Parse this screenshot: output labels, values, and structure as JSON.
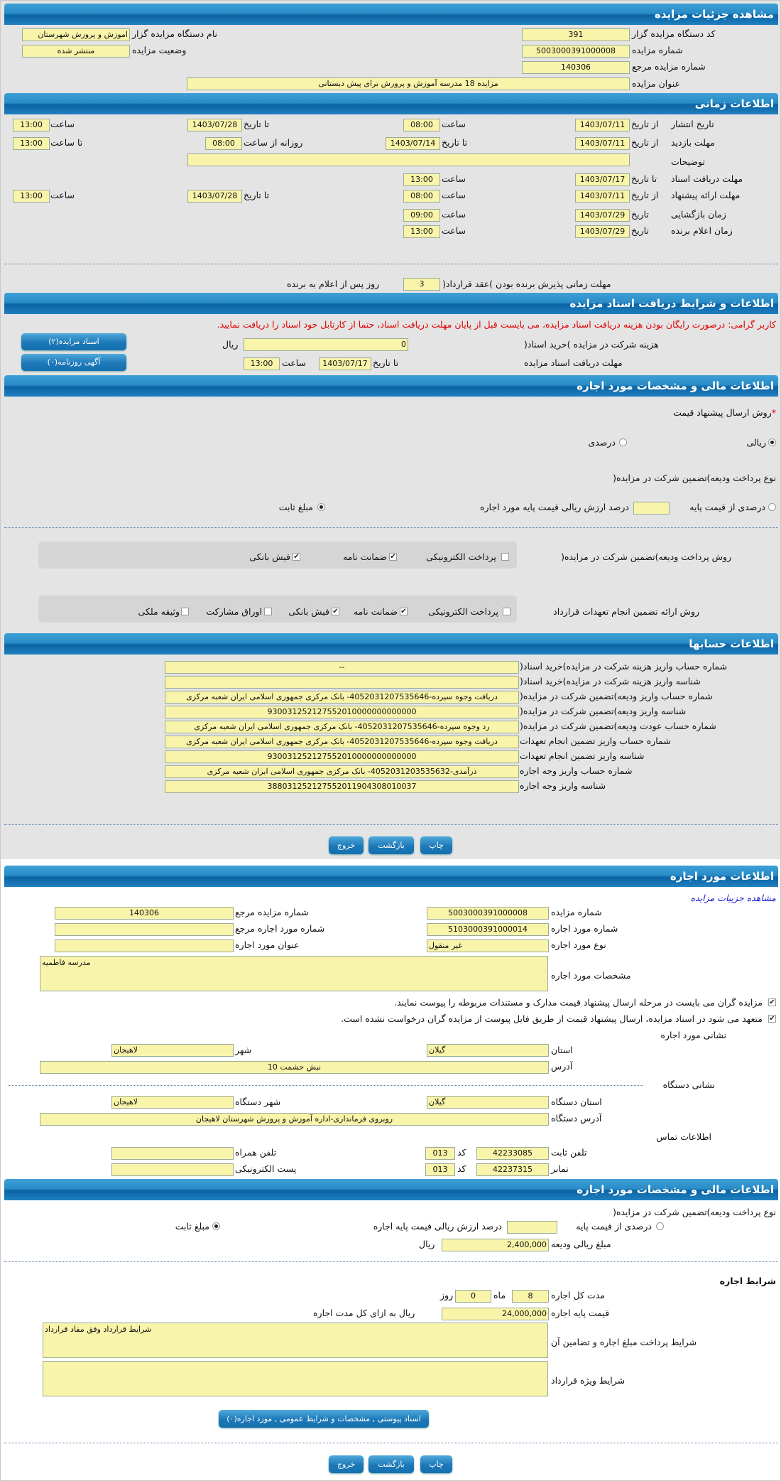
{
  "auction": {
    "header": "مشاهده جزئیات مزایده",
    "org_code_label": "کد دستگاه مزایده گزار",
    "org_code": "391",
    "auction_no_label": "شماره مزایده",
    "auction_no": "5003000391000008",
    "ref_no_label": "شماره مزایده مرجع",
    "ref_no": "140306",
    "title_label": "عنوان مزایده",
    "title": "مزایده 18 مدرسه آموزش و پرورش برای پیش دبستانی",
    "org_name_label": "نام دستگاه مزایده گزار",
    "org_name": "اموزش و پرورش شهرستان",
    "status_label": "وضعیت مزایده",
    "status": "منتشر شده"
  },
  "timing": {
    "header": "اطلاعات زمانی",
    "from_date": "از تاریخ",
    "to_date": "تا تاریخ",
    "hour": "ساعت",
    "to_hour": "تا ساعت",
    "date": "تاریخ",
    "daily_from_hour": "روزانه از ساعت",
    "publish": {
      "label": "تاریخ انتشار",
      "from": "1403/07/11",
      "from_time": "08:00",
      "to": "1403/07/28",
      "to_time": "13:00"
    },
    "visit": {
      "label": "مهلت بازدید",
      "from": "1403/07/11",
      "to": "1403/07/14",
      "daily_from": "08:00",
      "daily_to": "13:00"
    },
    "description_label": "توضیحات",
    "description": "",
    "doc_receive": {
      "label": "مهلت دریافت اسناد",
      "to": "1403/07/17",
      "time": "13:00"
    },
    "offer": {
      "label": "مهلت ارائه پیشنهاد",
      "from": "1403/07/11",
      "from_time": "08:00",
      "to": "1403/07/28",
      "to_time": "13:00"
    },
    "opening": {
      "label": "زمان بازگشایی",
      "date": "1403/07/29",
      "time": "09:00"
    },
    "winner": {
      "label": "زمان اعلام برنده",
      "date": "1403/07/29",
      "time": "13:00"
    },
    "acceptance_label": "مهلت زمانی پذیرش برنده بودن )عقد قرارداد(",
    "acceptance_days": "3",
    "acceptance_suffix": "روز پس از اعلام به برنده"
  },
  "documents": {
    "header": "اطلاعات و شرایط دریافت اسناد مزایده",
    "notice": "کاربر گرامی: درصورت رایگان بودن هزینه دریافت اسناد مزایده، می بایست قبل از پایان مهلت دریافت اسناد، حتما از کارتابل خود اسناد را دریافت نمایید.",
    "fee_label": "هزینه شرکت در مزایده )خرید اسناد(",
    "fee": "0",
    "currency": "ریال",
    "deadline_label": "مهلت دریافت اسناد مزایده",
    "to_date_label": "تا تاریخ",
    "deadline_date": "1403/07/17",
    "hour_label": "ساعت",
    "deadline_time": "13:00",
    "docs_button": "اسناد مزایده(۲)",
    "ads_button": "آگهی روزنامه(۰)"
  },
  "financial": {
    "header": "اطلاعات مالی و مشخصات مورد اجاره",
    "price_method_label": "روش ارسال پیشنهاد قیمت",
    "required_mark": "*",
    "price_methods": [
      {
        "label": "ریالی",
        "selected": true
      },
      {
        "label": "درصدی",
        "selected": false
      }
    ],
    "deposit_type_label": "نوع پرداخت ودیعه)تضمین شرکت در مزایده(",
    "deposit_percent_label": "درصدی از قیمت پایه",
    "deposit_percent": "",
    "deposit_percent_suffix": "درصد ارزش ریالی قیمت پایه مورد اجاره",
    "deposit_fixed_label": "مبلغ ثابت",
    "deposit_mode": "fixed",
    "deposit_payment_label": "روش پرداخت ودیعه)تضمین شرکت در مزایده(",
    "deposit_payment_options": [
      {
        "label": "پرداخت الکترونیکی",
        "checked": false
      },
      {
        "label": "ضمانت نامه",
        "checked": true
      },
      {
        "label": "فیش بانکی",
        "checked": true
      }
    ],
    "commitment_label": "روش ارائه تضمین انجام تعهدات قرارداد",
    "commitment_options": [
      {
        "label": "پرداخت الکترونیکی",
        "checked": false
      },
      {
        "label": "ضمانت نامه",
        "checked": true
      },
      {
        "label": "فیش بانکی",
        "checked": true
      },
      {
        "label": "اوراق مشارکت",
        "checked": false
      },
      {
        "label": "وثیقه ملکی",
        "checked": false
      }
    ]
  },
  "accounts": {
    "header": "اطلاعات حسابها",
    "rows": [
      {
        "label": "شماره حساب واریز هزینه شرکت در مزایده)خرید اسناد(",
        "value": "--"
      },
      {
        "label": "شناسه واریز هزینه شرکت در مزایده)خرید اسناد(",
        "value": ""
      },
      {
        "label": "شماره حساب واریز ودیعه)تضمین شرکت در مزایده(",
        "value": "دریافت وجوه سپرده-4052031207535646- بانک مرکزی جمهوری اسلامی ایران شعبه مرکزی"
      },
      {
        "label": "شناسه واریز ودیعه)تضمین شرکت در مزایده(",
        "value": "930031252127552010000000000000"
      },
      {
        "label": "شماره حساب عودت ودیعه)تضمین شرکت در مزایده(",
        "value": "رد وجوه سپرده-4052031207535646- بانک مرکزی جمهوری اسلامی ایران شعبه مرکزی"
      },
      {
        "label": "شماره حساب واریز تضمین انجام تعهدات",
        "value": "دریافت وجوه سپرده-4052031207535646- بانک مرکزی جمهوری اسلامی ایران شعبه مرکزی"
      },
      {
        "label": "شناسه واریز تضمین انجام تعهدات",
        "value": "930031252127552010000000000000"
      },
      {
        "label": "شماره حساب واریز وجه اجاره",
        "value": "درآمدی-4052031203535632- بانک مرکزی جمهوری اسلامی ایران شعبه مرکزی"
      },
      {
        "label": "شناسه واریز وجه اجاره",
        "value": "388031252127552011904308010037"
      }
    ]
  },
  "actions": {
    "print": "چاپ",
    "back": "بازگشت",
    "exit": "خروج"
  },
  "lease": {
    "header": "اطلاعات مورد اجاره",
    "details_link": "مشاهده جزییات مزایده",
    "auction_no_label": "شماره مزایده",
    "auction_no": "5003000391000008",
    "ref_no_label": "شماره مزایده مرجع",
    "ref_no": "140306",
    "item_no_label": "شماره مورد اجاره",
    "item_no": "5103000391000014",
    "item_ref_label": "شماره مورد اجاره مرجع",
    "item_ref": "",
    "item_type_label": "نوع مورد اجاره",
    "item_type": "غیر منقول",
    "item_title_label": "عنوان مورد اجاره",
    "item_title": "",
    "specs_label": "مشخصات مورد اجاره",
    "specs": "مدرسه فاطمیه",
    "check1": "مزایده گران می بایست در مرحله ارسال پیشنهاد قیمت مدارک و مستندات مربوطه را پیوست نمایند.",
    "check2": "متعهد می شود در اسناد مزایده، ارسال پیشنهاد قیمت از طریق فایل پیوست از مزایده گران درخواست نشده است.",
    "address_title": "نشانی مورد اجاره",
    "province_label": "استان",
    "province": "گیلان",
    "city_label": "شهر",
    "city": "لاهیجان",
    "address_label": "آدرس",
    "address": "نبش حشمت 10",
    "org_address_title": "نشانی دستگاه",
    "org_province_label": "استان دستگاه",
    "org_province": "گیلان",
    "org_city_label": "شهر دستگاه",
    "org_city": "لاهیجان",
    "org_address_label": "آدرس دستگاه",
    "org_address": "روبروی فرمانداری-اداره آموزش و پرورش  شهرستان لاهیجان",
    "contact_title": "اطلاعات تماس",
    "phone_label": "تلفن ثابت",
    "phone": "42233085",
    "code_label": "کد",
    "phone_code": "013",
    "mobile_label": "تلفن همراه",
    "mobile": "",
    "fax_label": "نمابر",
    "fax": "42237315",
    "fax_code": "013",
    "email_label": "پست الکترونیکی",
    "email": ""
  },
  "lease_financial": {
    "header": "اطلاعات مالی و مشخصات مورد اجاره",
    "deposit_type_label": "نوع پرداخت ودیعه)تضمین شرکت در مزایده(",
    "deposit_percent_label": "درصدی از قیمت پایه",
    "deposit_percent": "",
    "deposit_percent_suffix": "درصد ارزش ریالی قیمت پایه اجاره",
    "deposit_fixed_label": "مبلغ ثابت",
    "deposit_mode": "fixed",
    "deposit_amount_label": "مبلغ ریالی ودیعه",
    "deposit_amount": "2,400,000",
    "currency": "ریال",
    "terms_title": "شرایط اجاره",
    "duration_label": "مدت کل اجاره",
    "months": "8",
    "months_label": "ماه",
    "days": "0",
    "days_label": "روز",
    "base_price_label": "قیمت پایه اجاره",
    "base_price": "24,000,000",
    "base_price_suffix": "ریال به ازای کل مدت اجاره",
    "payment_terms_label": "شرایط پرداخت مبلغ اجاره و تضامین آن",
    "payment_terms": "شرایط قرارداد وفق مفاد قرارداد",
    "special_terms_label": "شرایط ویژه قرارداد",
    "special_terms": "",
    "attachments_button": "اسناد پیوستی , مشخصات و شرایط عمومی , مورد اجاره(۰)"
  }
}
